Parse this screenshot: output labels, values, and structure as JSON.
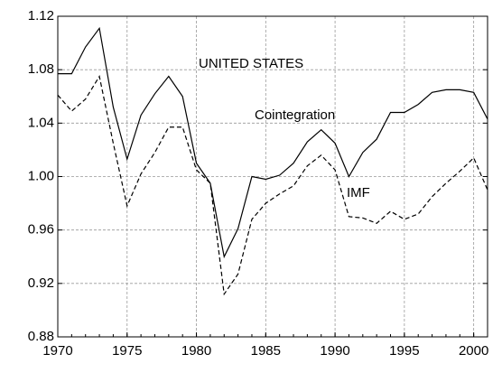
{
  "chart_data": {
    "type": "line",
    "title": "UNITED STATES",
    "x": [
      1970,
      1971,
      1972,
      1973,
      1974,
      1975,
      1976,
      1977,
      1978,
      1979,
      1980,
      1981,
      1982,
      1983,
      1984,
      1985,
      1986,
      1987,
      1988,
      1989,
      1990,
      1991,
      1992,
      1993,
      1994,
      1995,
      1996,
      1997,
      1998,
      1999,
      2000,
      2001
    ],
    "series": [
      {
        "name": "Cointegration",
        "color": "#000000",
        "dash": false,
        "values": [
          1.077,
          1.077,
          1.097,
          1.111,
          1.052,
          1.013,
          1.046,
          1.062,
          1.075,
          1.06,
          1.01,
          0.995,
          0.94,
          0.961,
          1.0,
          0.998,
          1.001,
          1.01,
          1.026,
          1.035,
          1.025,
          1.0,
          1.018,
          1.028,
          1.048,
          1.048,
          1.054,
          1.063,
          1.065,
          1.065,
          1.063,
          1.043
        ]
      },
      {
        "name": "IMF",
        "color": "#000000",
        "dash": true,
        "values": [
          1.061,
          1.049,
          1.058,
          1.075,
          1.025,
          0.978,
          1.002,
          1.018,
          1.037,
          1.037,
          1.005,
          0.995,
          0.912,
          0.927,
          0.968,
          0.98,
          0.987,
          0.993,
          1.008,
          1.016,
          1.005,
          0.97,
          0.969,
          0.965,
          0.974,
          0.968,
          0.972,
          0.985,
          0.995,
          1.004,
          1.014,
          0.99
        ]
      }
    ],
    "xlim": [
      1970,
      2001
    ],
    "xticks": [
      1970,
      1975,
      1980,
      1985,
      1990,
      1995,
      2000
    ],
    "ylim": [
      0.88,
      1.12
    ],
    "yticks": [
      0.88,
      0.92,
      0.96,
      {
        "value": 1,
        "label": "1.00"
      },
      1.04,
      1.08,
      1.12
    ],
    "grid": true
  }
}
